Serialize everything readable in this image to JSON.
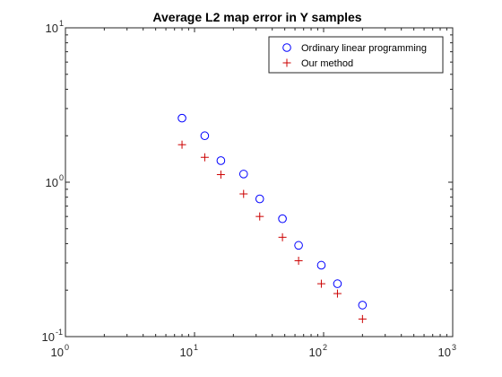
{
  "chart_data": {
    "type": "scatter",
    "title": "Average L2 map error in Y samples",
    "xlabel": "",
    "ylabel": "",
    "xscale": "log",
    "yscale": "log",
    "xlim": [
      1,
      1000
    ],
    "ylim": [
      0.1,
      10
    ],
    "grid": false,
    "legend_position": "top-right",
    "x_ticks": [
      {
        "base": "10",
        "exp": "0",
        "value": 1
      },
      {
        "base": "10",
        "exp": "1",
        "value": 10
      },
      {
        "base": "10",
        "exp": "2",
        "value": 100
      },
      {
        "base": "10",
        "exp": "3",
        "value": 1000
      }
    ],
    "y_ticks": [
      {
        "base": "10",
        "exp": "-1",
        "value": 0.1
      },
      {
        "base": "10",
        "exp": "0",
        "value": 1
      },
      {
        "base": "10",
        "exp": "1",
        "value": 10
      }
    ],
    "series": [
      {
        "name": "Ordinary linear programming",
        "marker": "circle",
        "color": "#0000ff",
        "x": [
          8,
          12,
          16,
          24,
          32,
          48,
          64,
          96,
          128,
          200
        ],
        "y": [
          2.6,
          2.0,
          1.38,
          1.13,
          0.78,
          0.58,
          0.39,
          0.29,
          0.22,
          0.16
        ]
      },
      {
        "name": "Our method",
        "marker": "plus",
        "color": "#cc0000",
        "x": [
          8,
          12,
          16,
          24,
          32,
          48,
          64,
          96,
          128,
          200
        ],
        "y": [
          1.75,
          1.45,
          1.12,
          0.84,
          0.6,
          0.44,
          0.31,
          0.22,
          0.19,
          0.13
        ]
      }
    ]
  }
}
